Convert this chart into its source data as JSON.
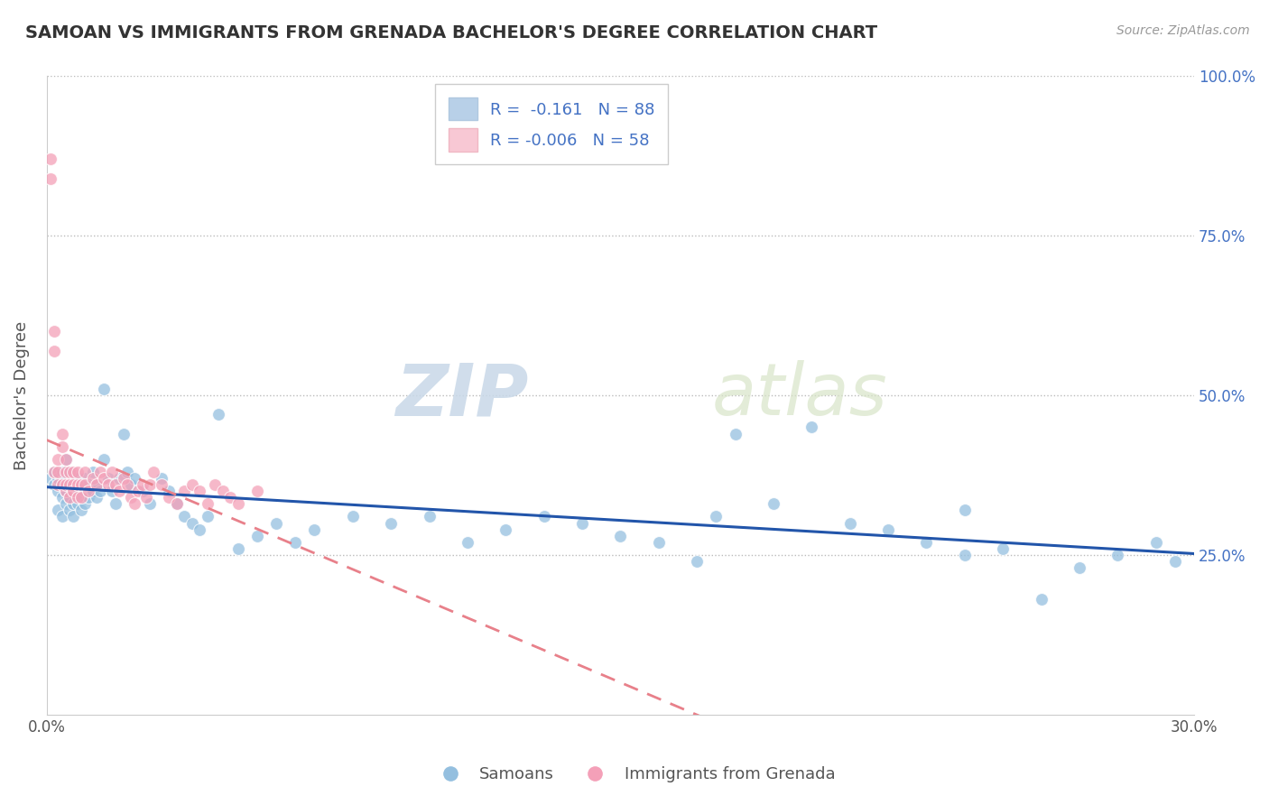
{
  "title": "SAMOAN VS IMMIGRANTS FROM GRENADA BACHELOR'S DEGREE CORRELATION CHART",
  "source": "Source: ZipAtlas.com",
  "ylabel": "Bachelor's Degree",
  "watermark_zip": "ZIP",
  "watermark_atlas": "atlas",
  "xlim": [
    0.0,
    0.3
  ],
  "ylim": [
    0.0,
    1.0
  ],
  "samoans_R": -0.161,
  "samoans_N": 88,
  "grenada_R": -0.006,
  "grenada_N": 58,
  "samoans_color": "#94bfdf",
  "grenada_color": "#f4a0b8",
  "samoans_line_color": "#2255aa",
  "grenada_line_color": "#e8808a",
  "background_color": "#ffffff",
  "grid_color": "#bbbbbb",
  "samoans_x": [
    0.001,
    0.002,
    0.002,
    0.003,
    0.003,
    0.003,
    0.004,
    0.004,
    0.004,
    0.004,
    0.005,
    0.005,
    0.005,
    0.005,
    0.006,
    0.006,
    0.006,
    0.006,
    0.007,
    0.007,
    0.007,
    0.007,
    0.008,
    0.008,
    0.008,
    0.009,
    0.009,
    0.009,
    0.01,
    0.01,
    0.01,
    0.011,
    0.011,
    0.012,
    0.012,
    0.013,
    0.013,
    0.014,
    0.015,
    0.015,
    0.016,
    0.017,
    0.018,
    0.019,
    0.02,
    0.021,
    0.022,
    0.023,
    0.025,
    0.027,
    0.03,
    0.032,
    0.034,
    0.036,
    0.038,
    0.04,
    0.042,
    0.045,
    0.05,
    0.055,
    0.06,
    0.065,
    0.07,
    0.08,
    0.09,
    0.1,
    0.11,
    0.12,
    0.13,
    0.14,
    0.15,
    0.16,
    0.17,
    0.18,
    0.2,
    0.22,
    0.23,
    0.24,
    0.25,
    0.26,
    0.27,
    0.28,
    0.29,
    0.295,
    0.24,
    0.21,
    0.19,
    0.175
  ],
  "samoans_y": [
    0.37,
    0.36,
    0.38,
    0.35,
    0.37,
    0.32,
    0.36,
    0.34,
    0.38,
    0.31,
    0.37,
    0.35,
    0.33,
    0.4,
    0.36,
    0.34,
    0.38,
    0.32,
    0.37,
    0.35,
    0.33,
    0.31,
    0.37,
    0.35,
    0.33,
    0.36,
    0.34,
    0.32,
    0.37,
    0.35,
    0.33,
    0.36,
    0.34,
    0.35,
    0.38,
    0.36,
    0.34,
    0.35,
    0.51,
    0.4,
    0.37,
    0.35,
    0.33,
    0.37,
    0.44,
    0.38,
    0.36,
    0.37,
    0.35,
    0.33,
    0.37,
    0.35,
    0.33,
    0.31,
    0.3,
    0.29,
    0.31,
    0.47,
    0.26,
    0.28,
    0.3,
    0.27,
    0.29,
    0.31,
    0.3,
    0.31,
    0.27,
    0.29,
    0.31,
    0.3,
    0.28,
    0.27,
    0.24,
    0.44,
    0.45,
    0.29,
    0.27,
    0.25,
    0.26,
    0.18,
    0.23,
    0.25,
    0.27,
    0.24,
    0.32,
    0.3,
    0.33,
    0.31
  ],
  "grenada_x": [
    0.001,
    0.001,
    0.002,
    0.002,
    0.002,
    0.003,
    0.003,
    0.003,
    0.004,
    0.004,
    0.004,
    0.005,
    0.005,
    0.005,
    0.005,
    0.006,
    0.006,
    0.006,
    0.007,
    0.007,
    0.007,
    0.008,
    0.008,
    0.008,
    0.009,
    0.009,
    0.01,
    0.01,
    0.011,
    0.012,
    0.013,
    0.014,
    0.015,
    0.016,
    0.017,
    0.018,
    0.019,
    0.02,
    0.021,
    0.022,
    0.023,
    0.024,
    0.025,
    0.026,
    0.027,
    0.028,
    0.03,
    0.032,
    0.034,
    0.036,
    0.038,
    0.04,
    0.042,
    0.044,
    0.046,
    0.048,
    0.05,
    0.055
  ],
  "grenada_y": [
    0.87,
    0.84,
    0.6,
    0.57,
    0.38,
    0.36,
    0.4,
    0.38,
    0.42,
    0.44,
    0.36,
    0.38,
    0.4,
    0.35,
    0.36,
    0.38,
    0.36,
    0.34,
    0.36,
    0.38,
    0.35,
    0.36,
    0.34,
    0.38,
    0.36,
    0.34,
    0.38,
    0.36,
    0.35,
    0.37,
    0.36,
    0.38,
    0.37,
    0.36,
    0.38,
    0.36,
    0.35,
    0.37,
    0.36,
    0.34,
    0.33,
    0.35,
    0.36,
    0.34,
    0.36,
    0.38,
    0.36,
    0.34,
    0.33,
    0.35,
    0.36,
    0.35,
    0.33,
    0.36,
    0.35,
    0.34,
    0.33,
    0.35
  ]
}
